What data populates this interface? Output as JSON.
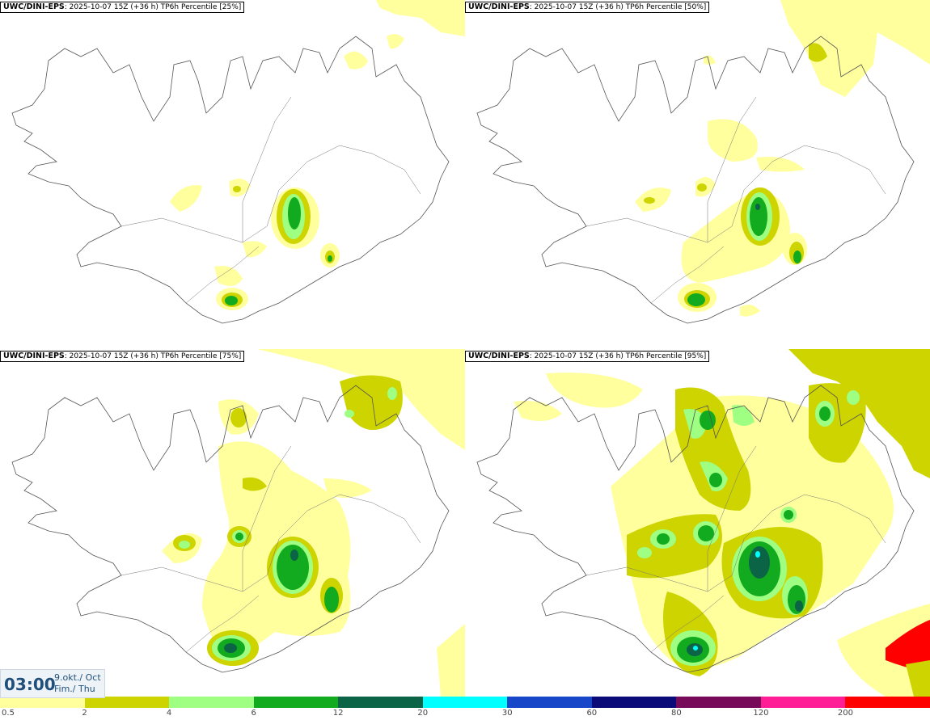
{
  "panels": [
    {
      "model": "UWC/DINI-EPS",
      "detail": ": 2025-10-07 15Z (+36 h) TP6h Percentile [25%]"
    },
    {
      "model": "UWC/DINI-EPS",
      "detail": ": 2025-10-07 15Z (+36 h) TP6h Percentile [50%]"
    },
    {
      "model": "UWC/DINI-EPS",
      "detail": ": 2025-10-07 15Z (+36 h) TP6h Percentile [75%]"
    },
    {
      "model": "UWC/DINI-EPS",
      "detail": ": 2025-10-07 15Z (+36 h) TP6h Percentile [95%]"
    }
  ],
  "time": {
    "clock": "03:00",
    "date_line1": "9.okt./ Oct",
    "date_line2": "Fim./ Thu"
  },
  "legend": {
    "labels": [
      "0.5",
      "2",
      "4",
      "6",
      "12",
      "20",
      "30",
      "60",
      "80",
      "120",
      "200"
    ],
    "colors": [
      "#ffff9e",
      "#cdd400",
      "#9eff82",
      "#12aa1e",
      "#0c6446",
      "#00ffff",
      "#1846c8",
      "#0a0a78",
      "#780a5a",
      "#ff1e96",
      "#ff0000"
    ]
  }
}
